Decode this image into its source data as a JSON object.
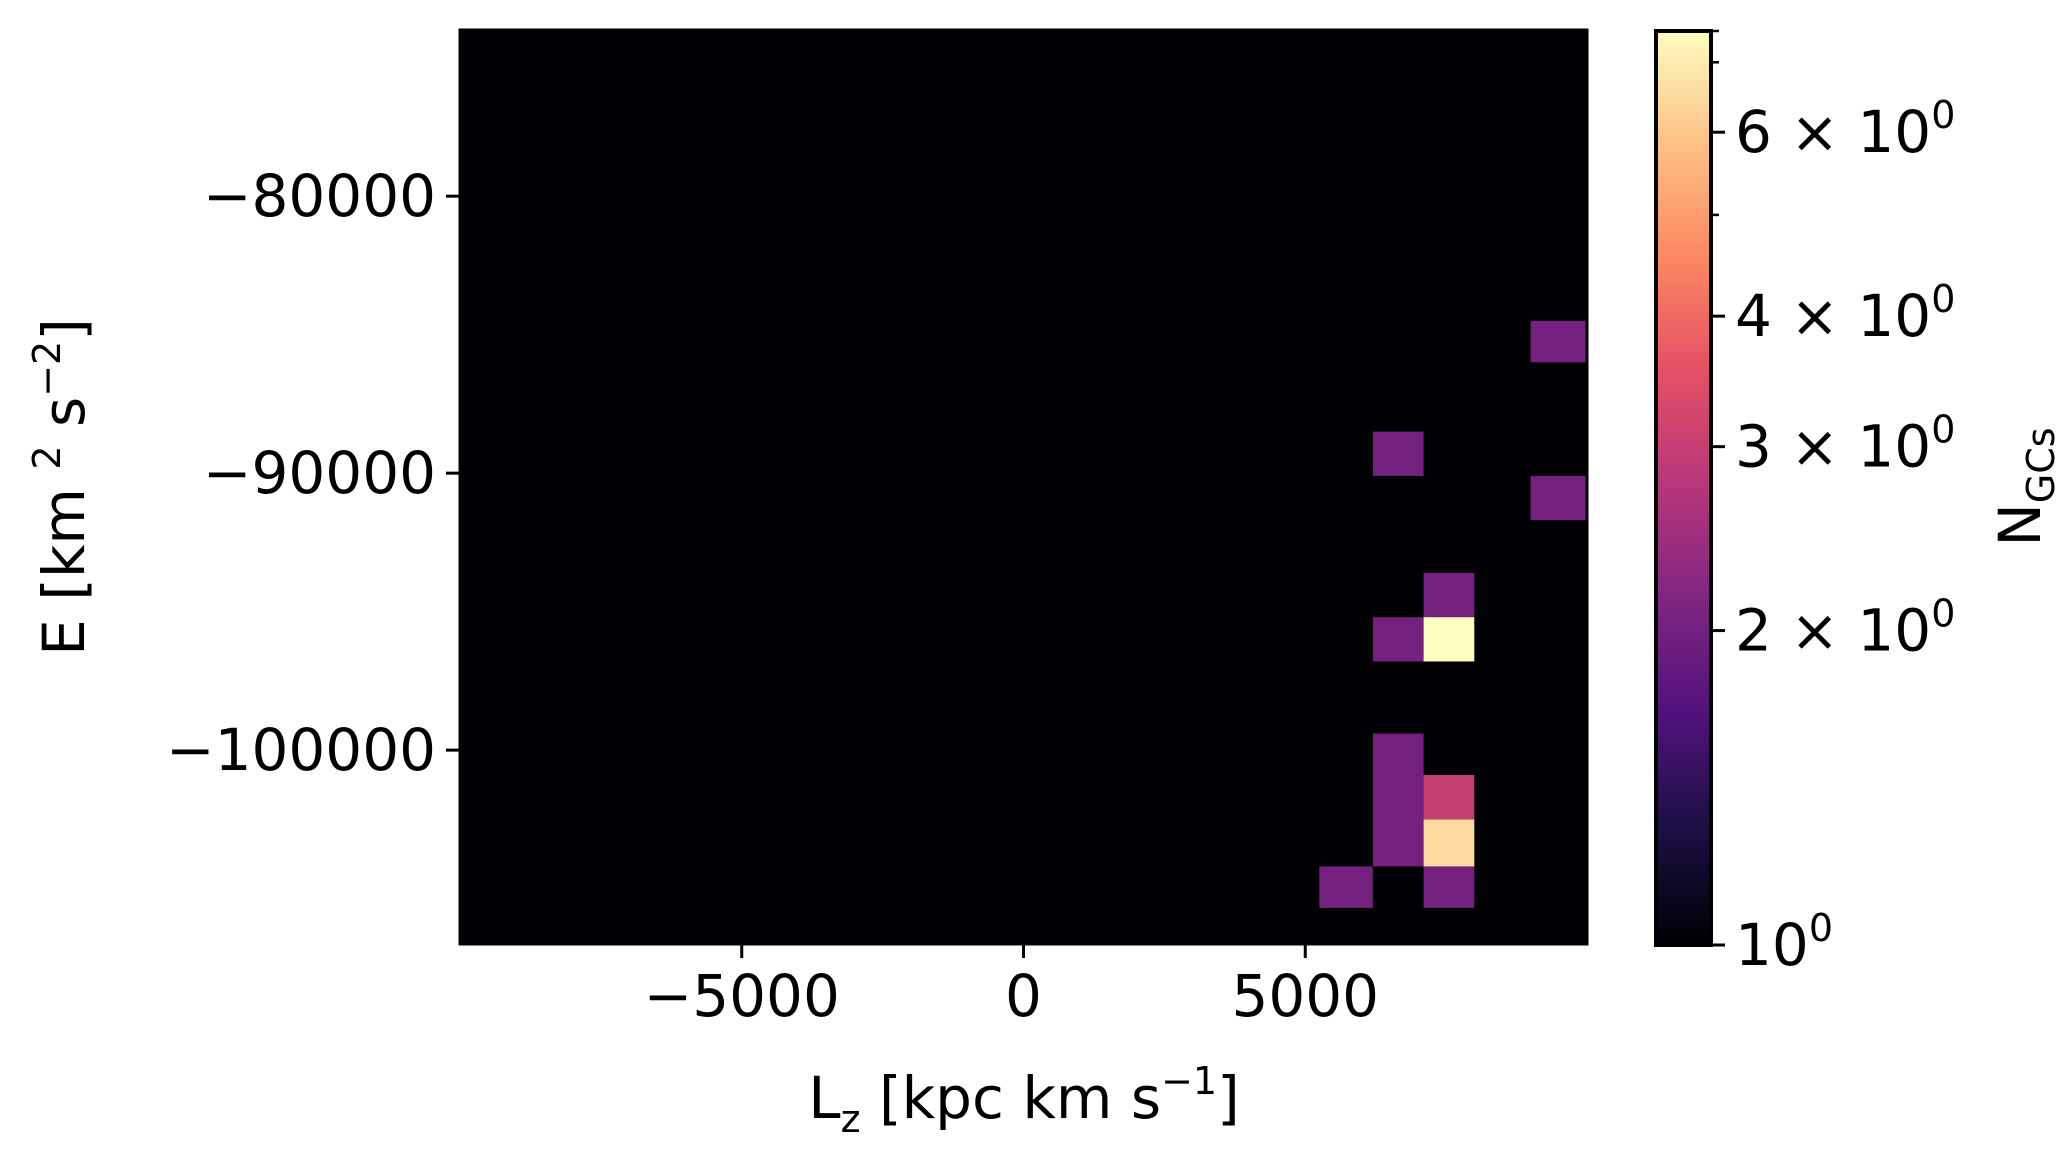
{
  "chart_data": {
    "type": "heatmap",
    "xlabel": {
      "base": "L",
      "sub": "z",
      "pre_unit": " [kpc km s",
      "unit_sup": "−1",
      "post": "]"
    },
    "ylabel": {
      "pre": "E [km ",
      "sup1": "2",
      "mid": " s",
      "sup2": "−2",
      "post": "]"
    },
    "xlim": [
      -10000,
      10000
    ],
    "ylim": [
      -107000,
      -74000
    ],
    "x_ticks": [
      {
        "value": -5000,
        "label": "−5000"
      },
      {
        "value": 0,
        "label": "0"
      },
      {
        "value": 5000,
        "label": "5000"
      }
    ],
    "y_ticks": [
      {
        "value": -80000,
        "label": "−80000"
      },
      {
        "value": -90000,
        "label": "−90000"
      },
      {
        "value": -100000,
        "label": "−100000"
      }
    ],
    "background_color": "#000004",
    "colorbar": {
      "label_base": "N",
      "label_sub": "GCs",
      "scale": "log",
      "min": 1,
      "max": 7.5,
      "colormap": "magma",
      "major_ticks": [
        {
          "value": 1,
          "base": "10",
          "exp": "0"
        },
        {
          "value": 2,
          "base": "2 × 10",
          "exp": "0"
        },
        {
          "value": 3,
          "base": "3 × 10",
          "exp": "0"
        },
        {
          "value": 4,
          "base": "4 × 10",
          "exp": "0"
        },
        {
          "value": 6,
          "base": "6 × 10",
          "exp": "0"
        }
      ],
      "minor_ticks": [
        5,
        7
      ]
    },
    "bins": [
      {
        "x0": 9000,
        "x1": 10000,
        "y0": -86000,
        "y1": -84500,
        "count": 2
      },
      {
        "x0": 6200,
        "x1": 7100,
        "y0": -90100,
        "y1": -88500,
        "count": 2
      },
      {
        "x0": 9000,
        "x1": 10000,
        "y0": -91700,
        "y1": -90100,
        "count": 2
      },
      {
        "x0": 7100,
        "x1": 8000,
        "y0": -95200,
        "y1": -93600,
        "count": 2
      },
      {
        "x0": 6200,
        "x1": 7100,
        "y0": -96800,
        "y1": -95200,
        "count": 2
      },
      {
        "x0": 7100,
        "x1": 8000,
        "y0": -96800,
        "y1": -95200,
        "count": 7.5
      },
      {
        "x0": 6200,
        "x1": 7100,
        "y0": -104200,
        "y1": -99400,
        "count": 2
      },
      {
        "x0": 7100,
        "x1": 8000,
        "y0": -102500,
        "y1": -100900,
        "count": 3
      },
      {
        "x0": 7100,
        "x1": 8000,
        "y0": -104200,
        "y1": -102500,
        "count": 6.5
      },
      {
        "x0": 5250,
        "x1": 6200,
        "y0": -105700,
        "y1": -104200,
        "count": 2
      },
      {
        "x0": 7100,
        "x1": 8000,
        "y0": -105700,
        "y1": -104200,
        "count": 2
      }
    ]
  }
}
